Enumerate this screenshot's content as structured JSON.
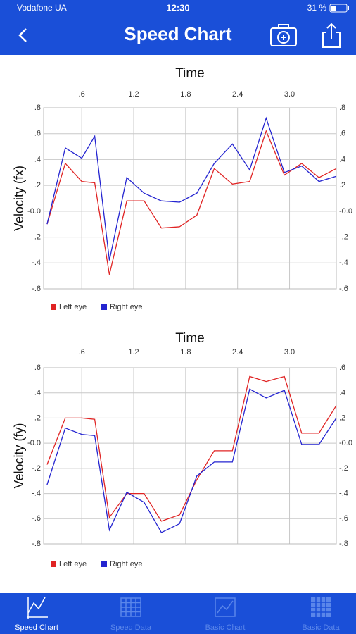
{
  "status_bar": {
    "carrier": "Vodafone UA",
    "time": "12:30",
    "battery": "31 %"
  },
  "nav_bar": {
    "title": "Speed Chart"
  },
  "chart_data": [
    {
      "type": "line",
      "title": "Time",
      "y_label": "Velocity (fx)",
      "x": [
        0.2,
        0.41,
        0.6,
        0.75,
        0.92,
        1.12,
        1.32,
        1.52,
        1.73,
        1.93,
        2.13,
        2.34,
        2.54,
        2.73,
        2.94,
        3.14,
        3.34,
        3.54
      ],
      "xlim": [
        0.16,
        3.54
      ],
      "xticks": [
        {
          "value": 0.6,
          "label": ".6"
        },
        1.2,
        1.8,
        2.4,
        {
          "value": 3,
          "label": "3.0"
        }
      ],
      "ylim": [
        -0.6,
        0.8
      ],
      "yticks": [
        {
          "value": 0.8,
          "label": ".8"
        },
        {
          "value": 0.6,
          "label": ".6"
        },
        {
          "value": 0.4,
          "label": ".4"
        },
        {
          "value": 0.2,
          "label": ".2"
        },
        {
          "value": 0,
          "label": "-0.0"
        },
        {
          "value": -0.2,
          "label": "-.2"
        },
        {
          "value": -0.4,
          "label": "-.4"
        },
        {
          "value": -0.6,
          "label": "-.6"
        }
      ],
      "grid": true,
      "legend": "bottom-left",
      "series": [
        {
          "name": "Left eye",
          "color": "#e02424",
          "values": [
            -0.1,
            0.37,
            0.23,
            0.22,
            -0.49,
            0.08,
            0.08,
            -0.13,
            -0.12,
            -0.03,
            0.33,
            0.21,
            0.23,
            0.62,
            0.28,
            0.37,
            0.26,
            0.33
          ]
        },
        {
          "name": "Right eye",
          "color": "#2424d0",
          "values": [
            -0.1,
            0.49,
            0.41,
            0.58,
            -0.38,
            0.26,
            0.14,
            0.08,
            0.07,
            0.14,
            0.37,
            0.52,
            0.32,
            0.72,
            0.3,
            0.35,
            0.23,
            0.27
          ]
        }
      ]
    },
    {
      "type": "line",
      "title": "Time",
      "y_label": "Velocity (fy)",
      "x": [
        0.2,
        0.41,
        0.6,
        0.75,
        0.92,
        1.12,
        1.32,
        1.52,
        1.73,
        1.93,
        2.13,
        2.34,
        2.54,
        2.73,
        2.94,
        3.14,
        3.34,
        3.54
      ],
      "xlim": [
        0.16,
        3.54
      ],
      "xticks": [
        {
          "value": 0.6,
          "label": ".6"
        },
        1.2,
        1.8,
        2.4,
        {
          "value": 3,
          "label": "3.0"
        }
      ],
      "ylim": [
        -0.8,
        0.6
      ],
      "yticks": [
        {
          "value": 0.6,
          "label": ".6"
        },
        {
          "value": 0.4,
          "label": ".4"
        },
        {
          "value": 0.2,
          "label": ".2"
        },
        {
          "value": 0,
          "label": "-0.0"
        },
        {
          "value": -0.2,
          "label": "-.2"
        },
        {
          "value": -0.4,
          "label": "-.4"
        },
        {
          "value": -0.6,
          "label": "-.6"
        },
        {
          "value": -0.8,
          "label": "-.8"
        }
      ],
      "grid": true,
      "legend": "bottom-left",
      "series": [
        {
          "name": "Left eye",
          "color": "#e02424",
          "values": [
            -0.17,
            0.2,
            0.2,
            0.19,
            -0.59,
            -0.4,
            -0.4,
            -0.62,
            -0.57,
            -0.29,
            -0.06,
            -0.06,
            0.53,
            0.49,
            0.53,
            0.08,
            0.08,
            0.3
          ]
        },
        {
          "name": "Right eye",
          "color": "#2424d0",
          "values": [
            -0.33,
            0.12,
            0.07,
            0.06,
            -0.69,
            -0.39,
            -0.47,
            -0.71,
            -0.64,
            -0.26,
            -0.15,
            -0.15,
            0.43,
            0.36,
            0.42,
            -0.01,
            -0.01,
            0.2
          ]
        }
      ]
    }
  ],
  "tab_bar": {
    "tabs": [
      "Speed Chart",
      "Speed Data",
      "Basic Chart",
      "Basic Data"
    ]
  }
}
